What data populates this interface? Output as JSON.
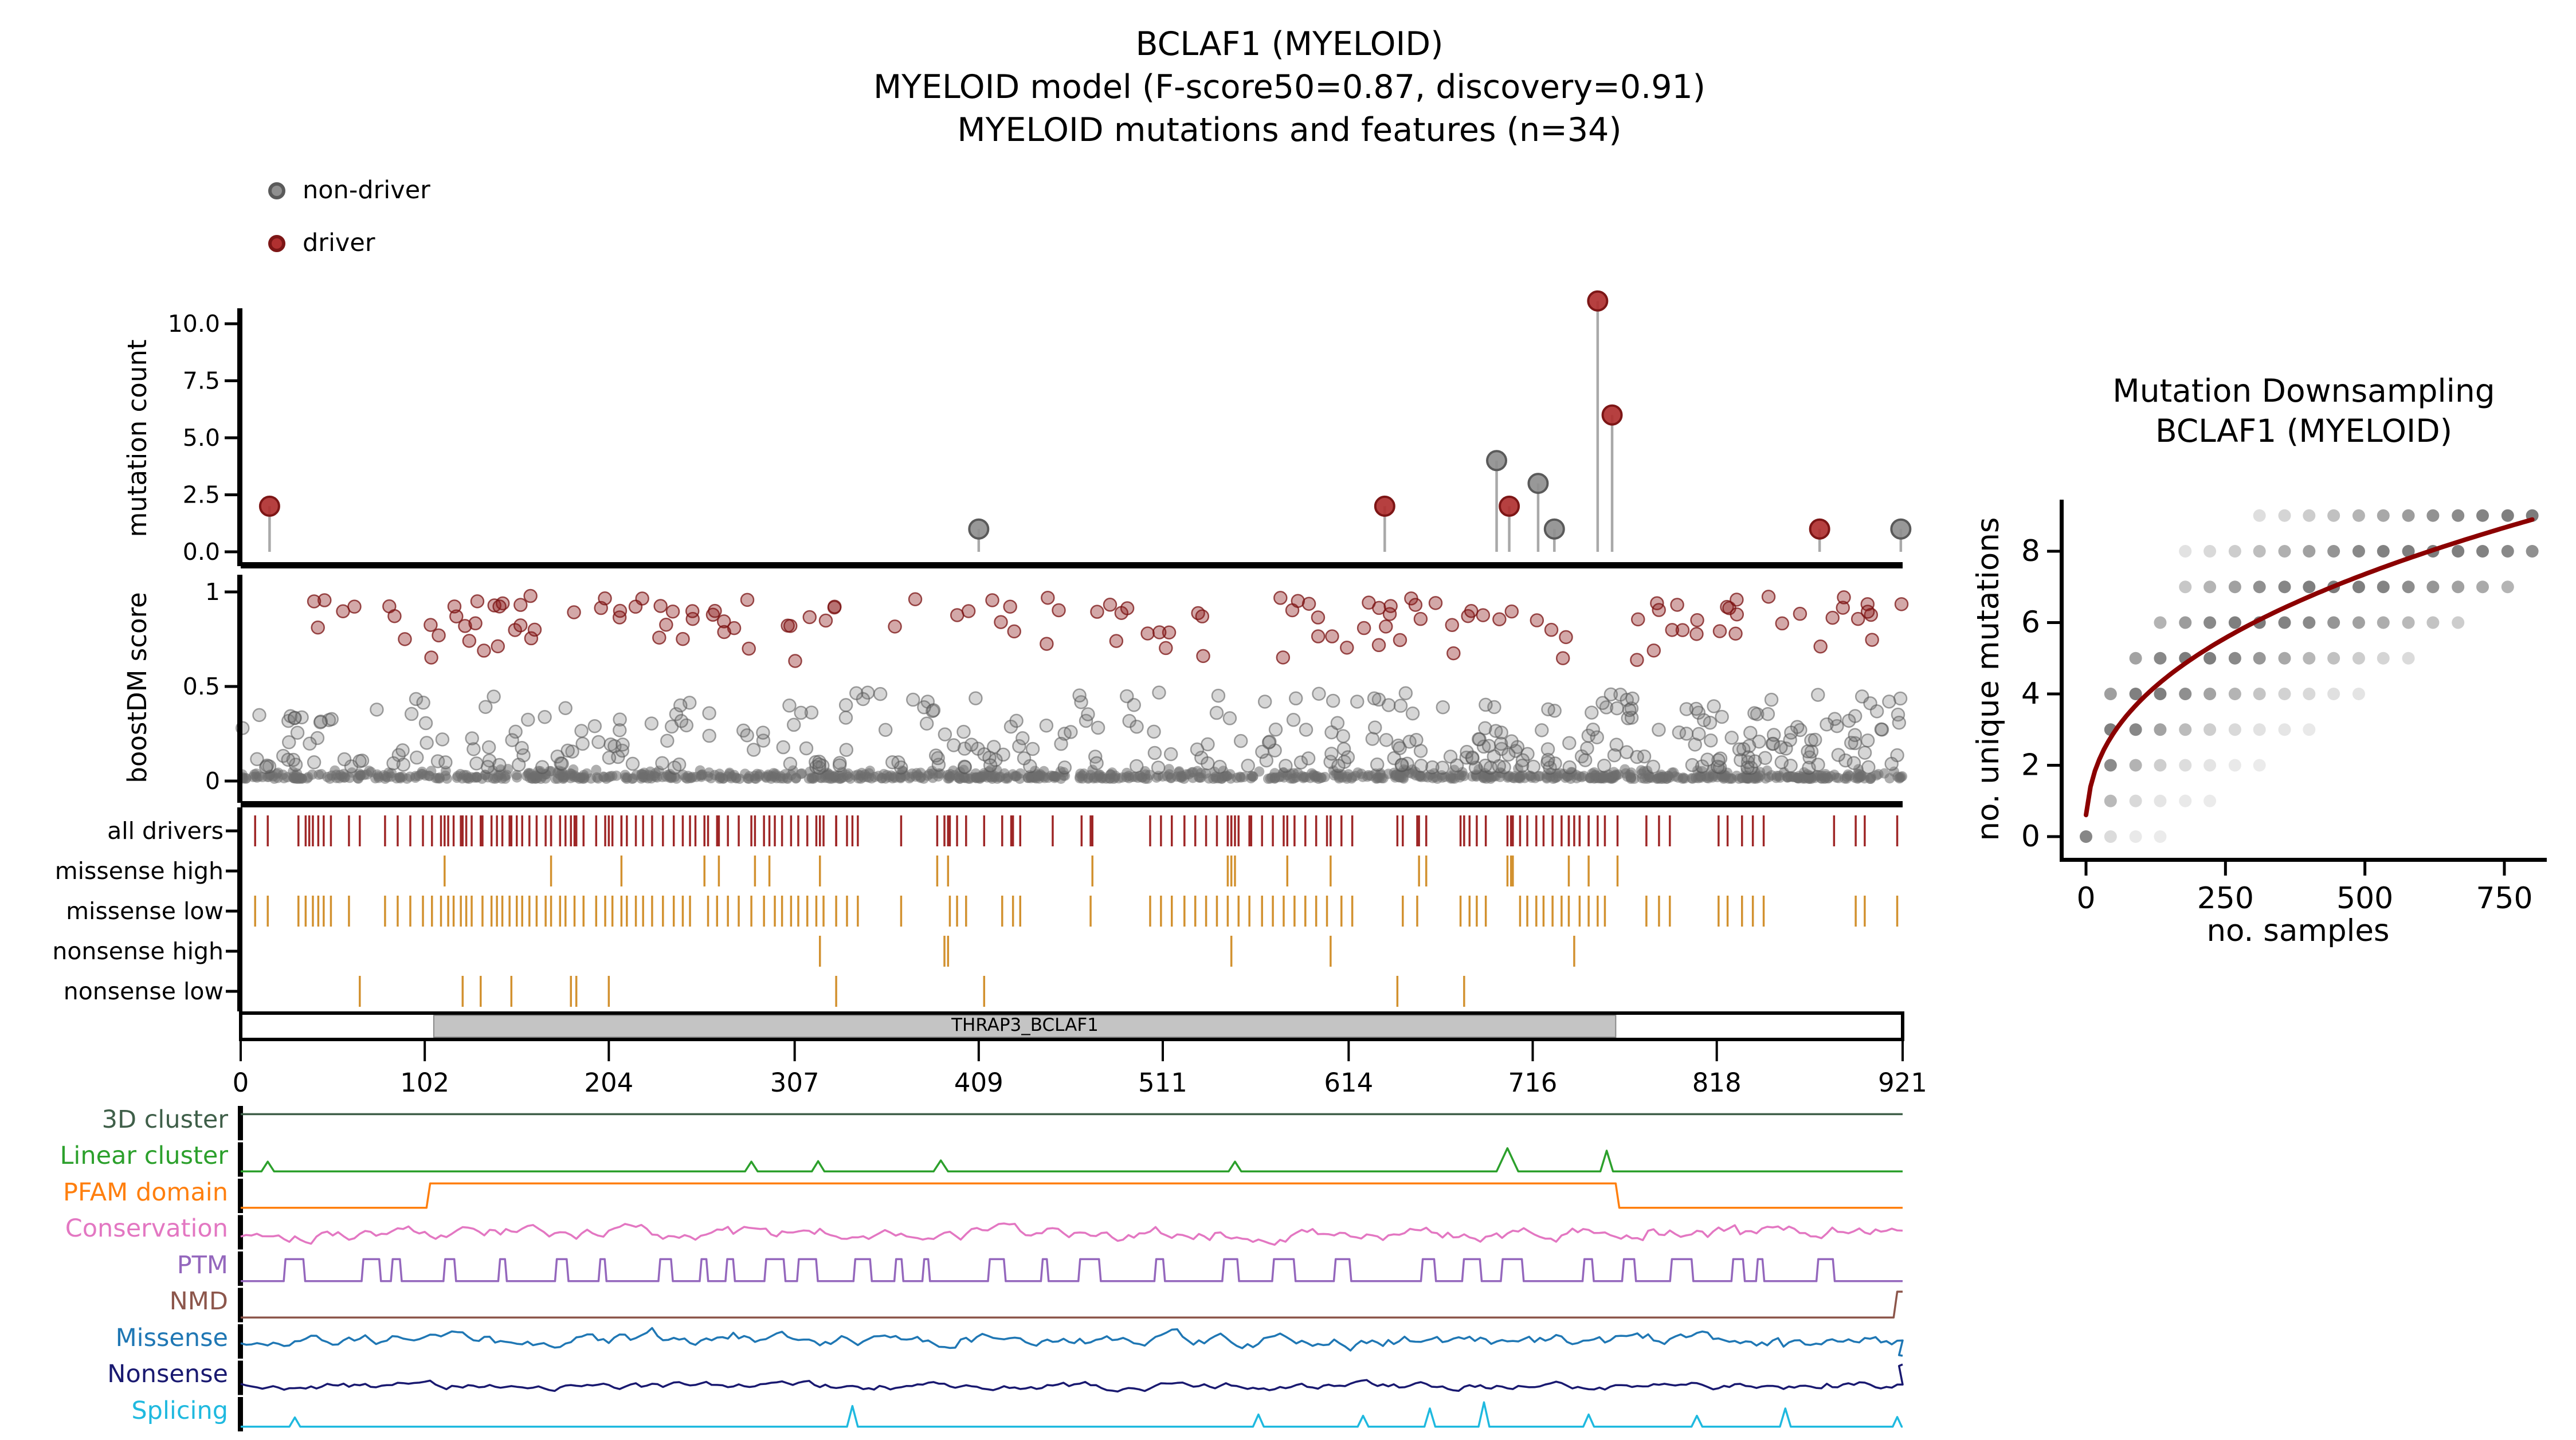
{
  "title": {
    "line1": "BCLAF1 (MYELOID)",
    "line2": "MYELOID model (F-score50=0.87, discovery=0.91)",
    "line3": "MYELOID mutations and features (n=34)"
  },
  "legend": {
    "items": [
      {
        "label": "non-driver",
        "color": "#8f8f8f",
        "edge": "#5a5a5a"
      },
      {
        "label": "driver",
        "color": "#b03030",
        "edge": "#7d1616"
      }
    ]
  },
  "colors": {
    "driver": "#b03030",
    "driver_edge": "#7d1616",
    "nondriver": "#8f8f8f",
    "nondriver_edge": "#5a5a5a",
    "drivers_tick": "#9e2626",
    "consequence_tick": "#d2912f",
    "downsampling_curve": "#8b0000",
    "axis": "#000000"
  },
  "chart_data": {
    "needle_plot": {
      "type": "lollipop",
      "ylabel": "mutation count",
      "yticks": [
        "0.0",
        "2.5",
        "5.0",
        "7.5",
        "10.0"
      ],
      "xmax": 921,
      "points": [
        {
          "pos": 16,
          "count": 2,
          "driver": true
        },
        {
          "pos": 409,
          "count": 1,
          "driver": false
        },
        {
          "pos": 634,
          "count": 2,
          "driver": true
        },
        {
          "pos": 696,
          "count": 4,
          "driver": false
        },
        {
          "pos": 703,
          "count": 2,
          "driver": true
        },
        {
          "pos": 719,
          "count": 3,
          "driver": false
        },
        {
          "pos": 728,
          "count": 1,
          "driver": false
        },
        {
          "pos": 752,
          "count": 11,
          "driver": true
        },
        {
          "pos": 760,
          "count": 6,
          "driver": true
        },
        {
          "pos": 875,
          "count": 1,
          "driver": true
        },
        {
          "pos": 920,
          "count": 1,
          "driver": false
        }
      ]
    },
    "score_plot": {
      "type": "scatter",
      "ylabel": "boostDM score",
      "yticks": [
        "0",
        "0.5",
        "1"
      ],
      "ymax": 1,
      "generative": {
        "seed": 77,
        "n_base": 950,
        "n_mid": 300,
        "n_mid_right": 80,
        "n_red": 140
      }
    },
    "consequence_tracks": {
      "type": "rug",
      "rows": [
        {
          "label": "all drivers",
          "color": "#9e2626"
        },
        {
          "label": "missense high",
          "color": "#d2912f"
        },
        {
          "label": "missense low",
          "color": "#d2912f"
        },
        {
          "label": "nonsense high",
          "color": "#d2912f"
        },
        {
          "label": "nonsense low",
          "color": "#d2912f"
        }
      ],
      "missense_high": [
        113,
        172,
        211,
        257,
        265,
        285,
        293,
        321,
        386,
        392,
        472,
        547,
        549,
        551,
        580,
        604,
        653,
        657,
        702,
        704,
        705,
        736,
        747,
        763
      ],
      "missense_low": [
        8,
        15,
        32,
        36,
        40,
        43,
        46,
        50,
        60,
        80,
        87,
        94,
        101,
        106,
        111,
        115,
        118,
        122,
        125,
        128,
        134,
        139,
        142,
        145,
        149,
        153,
        156,
        160,
        164,
        169,
        172,
        177,
        180,
        185,
        190,
        197,
        202,
        206,
        211,
        214,
        219,
        223,
        228,
        234,
        240,
        245,
        249,
        259,
        264,
        270,
        276,
        283,
        290,
        296,
        300,
        305,
        309,
        314,
        319,
        323,
        330,
        336,
        342,
        366,
        393,
        397,
        402,
        422,
        428,
        432,
        471,
        504,
        510,
        516,
        523,
        529,
        535,
        541,
        547,
        553,
        559,
        566,
        572,
        578,
        584,
        590,
        596,
        602,
        610,
        616,
        644,
        652,
        676,
        681,
        685,
        690,
        709,
        713,
        718,
        722,
        727,
        732,
        736,
        742,
        747,
        752,
        756,
        779,
        786,
        792,
        819,
        824,
        832,
        838,
        844,
        895,
        900,
        918
      ],
      "nonsense_high": [
        321,
        390,
        392,
        549,
        604,
        739
      ],
      "nonsense_low": [
        66,
        123,
        133,
        150,
        183,
        186,
        204,
        330,
        412,
        641,
        678
      ],
      "all_drivers_extra": [
        38,
        252,
        339,
        427,
        450,
        466,
        560,
        742,
        883
      ]
    },
    "domain_bar": {
      "label": "THRAP3_BCLAF1",
      "start": 107,
      "end": 762,
      "fill": "#c4c4c4"
    },
    "xaxis": {
      "ticks": [
        0,
        102,
        204,
        307,
        409,
        511,
        614,
        716,
        818,
        921
      ],
      "max": 921
    },
    "feature_tracks": [
      {
        "label": "3D cluster",
        "color": "#3f5f49",
        "type": "flat",
        "level": 0.8
      },
      {
        "label": "Linear cluster",
        "color": "#2ca02c",
        "type": "spikes",
        "baseline": 0.1,
        "spikes": [
          {
            "pos": 15,
            "h": 0.4,
            "w": 7
          },
          {
            "pos": 283,
            "h": 0.4,
            "w": 7
          },
          {
            "pos": 320,
            "h": 0.42,
            "w": 7
          },
          {
            "pos": 388,
            "h": 0.45,
            "w": 8
          },
          {
            "pos": 551,
            "h": 0.4,
            "w": 7
          },
          {
            "pos": 702,
            "h": 0.95,
            "w": 12
          },
          {
            "pos": 757,
            "h": 0.85,
            "w": 7
          }
        ]
      },
      {
        "label": "PFAM domain",
        "color": "#ff7f0e",
        "type": "step",
        "baseline": 0.1,
        "high": 0.92,
        "start": 103,
        "end": 762
      },
      {
        "label": "Conservation",
        "color": "#e377c2",
        "type": "noise",
        "mean": 0.48,
        "amp": 0.34,
        "seed": 101
      },
      {
        "label": "PTM",
        "color": "#9467bd",
        "type": "pulses",
        "baseline": 0.08,
        "high": 0.82,
        "seed": 55,
        "stop": 893
      },
      {
        "label": "NMD",
        "color": "#8c564b",
        "type": "flat",
        "level": 0.08,
        "end_rise": 0.95
      },
      {
        "label": "Missense",
        "color": "#1f77b4",
        "type": "noise",
        "mean": 0.55,
        "amp": 0.3,
        "seed": 202,
        "end_drop": true
      },
      {
        "label": "Nonsense",
        "color": "#191970",
        "type": "noise",
        "mean": 0.22,
        "amp": 0.18,
        "seed": 303,
        "end_rise2": true
      },
      {
        "label": "Splicing",
        "color": "#1fb9df",
        "type": "spikes",
        "baseline": 0.08,
        "spikes": [
          {
            "pos": 30,
            "h": 0.38,
            "w": 6
          },
          {
            "pos": 339,
            "h": 0.85,
            "w": 6
          },
          {
            "pos": 564,
            "h": 0.5,
            "w": 6
          },
          {
            "pos": 622,
            "h": 0.45,
            "w": 6
          },
          {
            "pos": 659,
            "h": 0.75,
            "w": 6
          },
          {
            "pos": 689,
            "h": 1.0,
            "w": 6
          },
          {
            "pos": 747,
            "h": 0.5,
            "w": 6
          },
          {
            "pos": 807,
            "h": 0.45,
            "w": 6
          },
          {
            "pos": 856,
            "h": 0.75,
            "w": 6
          },
          {
            "pos": 918,
            "h": 0.4,
            "w": 5
          }
        ]
      }
    ],
    "downsampling": {
      "type": "scatter+line",
      "title_line1": "Mutation Downsampling",
      "title_line2": "BCLAF1 (MYELOID)",
      "xlabel": "no. samples",
      "ylabel": "no. unique mutations",
      "xticks": [
        0,
        250,
        500,
        750
      ],
      "yticks": [
        0,
        2,
        4,
        6,
        8
      ],
      "xmax": 800,
      "ymax": 9,
      "curve": {
        "a": 0.605,
        "b": 0.402
      },
      "dot_columns": {
        "x": [
          0,
          44,
          89,
          133,
          178,
          222,
          267,
          311,
          356,
          400,
          444,
          489,
          533,
          578,
          622,
          667,
          711,
          756,
          800
        ],
        "y_range": [
          [
            0,
            0
          ],
          [
            0,
            4
          ],
          [
            0,
            5
          ],
          [
            0,
            6
          ],
          [
            1,
            8
          ],
          [
            1,
            8
          ],
          [
            2,
            8
          ],
          [
            2,
            9
          ],
          [
            3,
            9
          ],
          [
            3,
            9
          ],
          [
            4,
            9
          ],
          [
            4,
            9
          ],
          [
            5,
            9
          ],
          [
            5,
            9
          ],
          [
            6,
            9
          ],
          [
            6,
            9
          ],
          [
            7,
            9
          ],
          [
            7,
            9
          ],
          [
            8,
            9
          ]
        ]
      }
    }
  }
}
